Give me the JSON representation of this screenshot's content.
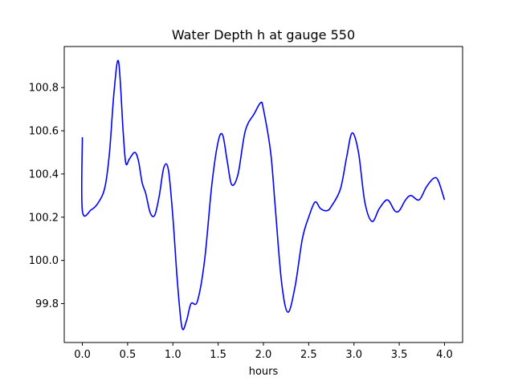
{
  "chart_data": {
    "type": "line",
    "title": "Water Depth h at gauge 550",
    "xlabel": "hours",
    "ylabel": "",
    "xlim": [
      -0.2,
      4.2
    ],
    "ylim": [
      99.62,
      100.99
    ],
    "xticks": [
      0.0,
      0.5,
      1.0,
      1.5,
      2.0,
      2.5,
      3.0,
      3.5,
      4.0
    ],
    "xtick_labels": [
      "0.0",
      "0.5",
      "1.0",
      "1.5",
      "2.0",
      "2.5",
      "3.0",
      "3.5",
      "4.0"
    ],
    "yticks": [
      99.8,
      100.0,
      100.2,
      100.4,
      100.6,
      100.8
    ],
    "ytick_labels": [
      "99.8",
      "100.0",
      "100.2",
      "100.4",
      "100.6",
      "100.8"
    ],
    "grid": false,
    "series": [
      {
        "color": "#0000ff",
        "points": [
          [
            0.0,
            100.57
          ],
          [
            0.0,
            100.23
          ],
          [
            0.1,
            100.235
          ],
          [
            0.18,
            100.27
          ],
          [
            0.25,
            100.34
          ],
          [
            0.3,
            100.5
          ],
          [
            0.35,
            100.78
          ],
          [
            0.4,
            100.92
          ],
          [
            0.45,
            100.6
          ],
          [
            0.48,
            100.45
          ],
          [
            0.52,
            100.47
          ],
          [
            0.58,
            100.5
          ],
          [
            0.62,
            100.46
          ],
          [
            0.66,
            100.36
          ],
          [
            0.7,
            100.31
          ],
          [
            0.75,
            100.22
          ],
          [
            0.8,
            100.21
          ],
          [
            0.85,
            100.3
          ],
          [
            0.9,
            100.43
          ],
          [
            0.95,
            100.42
          ],
          [
            1.0,
            100.2
          ],
          [
            1.05,
            99.9
          ],
          [
            1.1,
            99.69
          ],
          [
            1.15,
            99.72
          ],
          [
            1.2,
            99.8
          ],
          [
            1.27,
            99.81
          ],
          [
            1.35,
            100.0
          ],
          [
            1.43,
            100.35
          ],
          [
            1.5,
            100.55
          ],
          [
            1.55,
            100.58
          ],
          [
            1.6,
            100.46
          ],
          [
            1.65,
            100.35
          ],
          [
            1.72,
            100.4
          ],
          [
            1.8,
            100.6
          ],
          [
            1.9,
            100.68
          ],
          [
            1.97,
            100.73
          ],
          [
            2.0,
            100.7
          ],
          [
            2.08,
            100.5
          ],
          [
            2.13,
            100.25
          ],
          [
            2.2,
            99.9
          ],
          [
            2.27,
            99.76
          ],
          [
            2.35,
            99.88
          ],
          [
            2.43,
            100.1
          ],
          [
            2.5,
            100.2
          ],
          [
            2.57,
            100.27
          ],
          [
            2.63,
            100.24
          ],
          [
            2.7,
            100.23
          ],
          [
            2.75,
            100.25
          ],
          [
            2.85,
            100.33
          ],
          [
            2.92,
            100.48
          ],
          [
            2.98,
            100.59
          ],
          [
            3.05,
            100.5
          ],
          [
            3.12,
            100.27
          ],
          [
            3.2,
            100.18
          ],
          [
            3.28,
            100.24
          ],
          [
            3.37,
            100.28
          ],
          [
            3.45,
            100.23
          ],
          [
            3.5,
            100.23
          ],
          [
            3.57,
            100.28
          ],
          [
            3.63,
            100.3
          ],
          [
            3.72,
            100.28
          ],
          [
            3.8,
            100.34
          ],
          [
            3.88,
            100.38
          ],
          [
            3.93,
            100.37
          ],
          [
            4.0,
            100.28
          ]
        ]
      }
    ]
  }
}
